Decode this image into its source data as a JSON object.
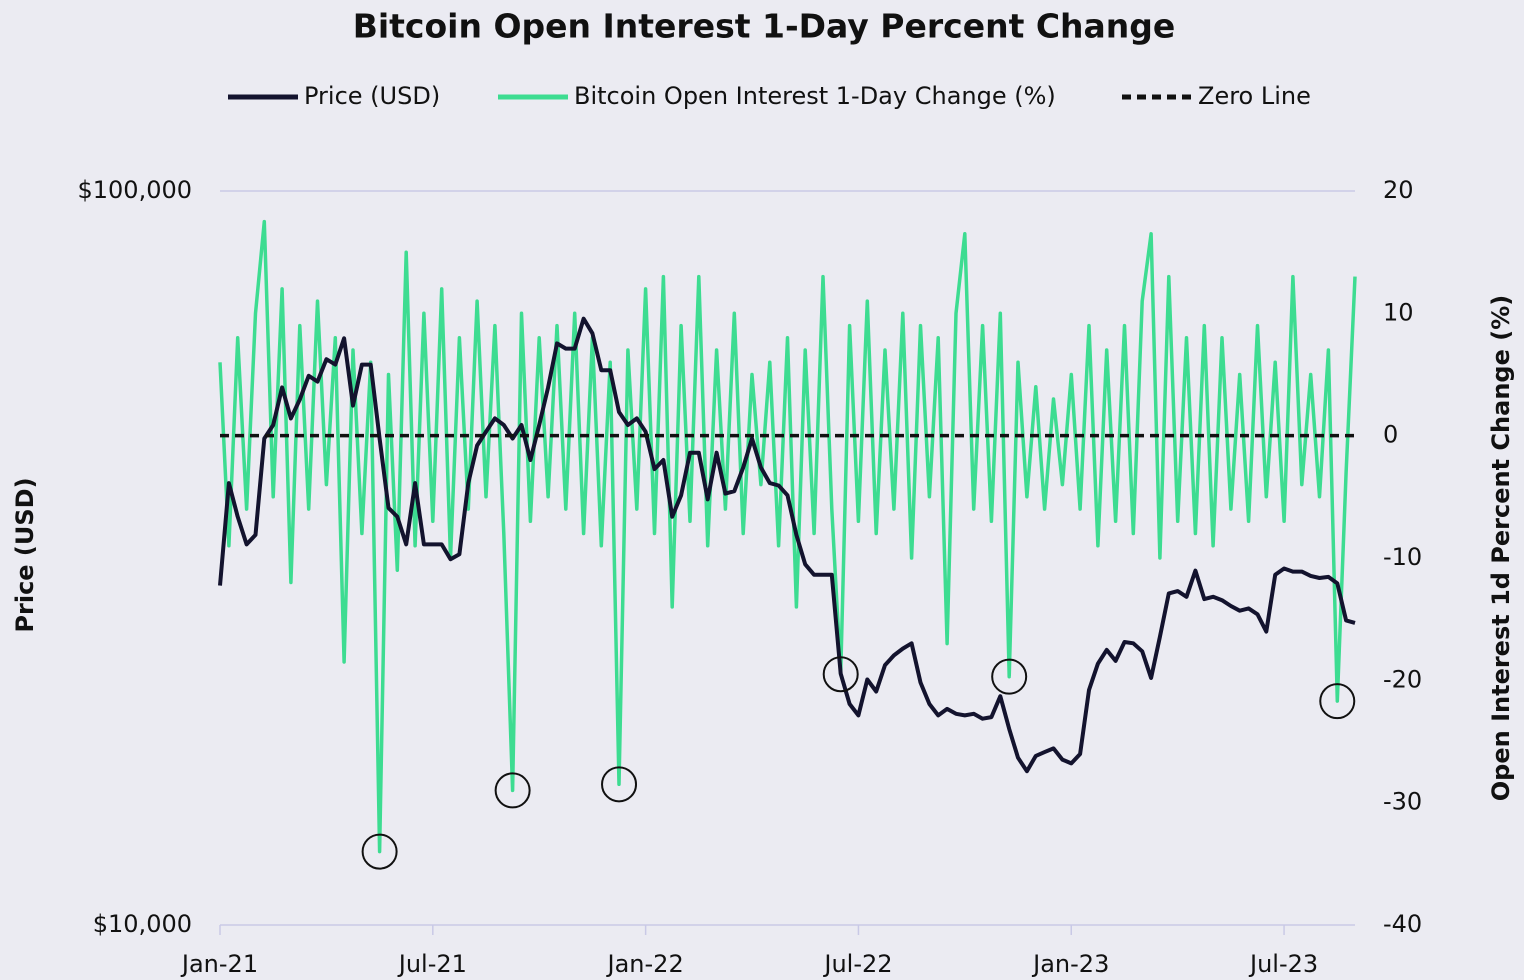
{
  "chart_data": {
    "type": "line",
    "title": "Bitcoin Open Interest 1-Day Percent Change",
    "y_label": "Price (USD)",
    "y2_label": "Open Interest 1d Percent Change (%)",
    "categories": [
      "Jan-21",
      null,
      null,
      null,
      null,
      null,
      null,
      null,
      null,
      null,
      null,
      null,
      null,
      null,
      null,
      null,
      null,
      null,
      null,
      null,
      null,
      null,
      null,
      null,
      "Jul-21",
      null,
      null,
      null,
      null,
      null,
      null,
      null,
      null,
      null,
      null,
      null,
      null,
      null,
      null,
      null,
      null,
      null,
      null,
      null,
      null,
      null,
      null,
      null,
      "Jan-22",
      null,
      null,
      null,
      null,
      null,
      null,
      null,
      null,
      null,
      null,
      null,
      null,
      null,
      null,
      null,
      null,
      null,
      null,
      null,
      null,
      null,
      null,
      null,
      "Jul-22",
      null,
      null,
      null,
      null,
      null,
      null,
      null,
      null,
      null,
      null,
      null,
      null,
      null,
      null,
      null,
      null,
      null,
      null,
      null,
      null,
      null,
      null,
      null,
      "Jan-23",
      null,
      null,
      null,
      null,
      null,
      null,
      null,
      null,
      null,
      null,
      null,
      null,
      null,
      null,
      null,
      null,
      null,
      null,
      null,
      null,
      null,
      null,
      null,
      "Jul-23",
      null,
      null,
      null,
      null,
      null,
      null,
      null,
      null
    ],
    "ylim": [
      10000,
      100000
    ],
    "y_log": true,
    "yticks": [
      {
        "value": 10000,
        "label": "$10,000"
      },
      {
        "value": 100000,
        "label": "$100,000"
      }
    ],
    "y2lim": [
      -40,
      20
    ],
    "y2ticks": [
      20,
      10,
      0,
      -10,
      -20,
      -30,
      -40
    ],
    "grid": true,
    "legend": "top",
    "series": [
      {
        "name": "Price (USD)",
        "color": "#13132e",
        "axis": "y",
        "values": [
          29000,
          40000,
          36000,
          33000,
          34000,
          46000,
          48000,
          54000,
          49000,
          52000,
          56000,
          55000,
          59000,
          58000,
          63000,
          51000,
          58000,
          58000,
          46000,
          37000,
          36000,
          33000,
          40000,
          33000,
          33000,
          33000,
          31500,
          32000,
          40000,
          45000,
          47000,
          49000,
          48000,
          46000,
          48000,
          43000,
          48000,
          54000,
          62000,
          61000,
          61000,
          67000,
          64000,
          57000,
          57000,
          50000,
          48000,
          49000,
          47000,
          41800,
          43000,
          36000,
          38500,
          44000,
          44000,
          38000,
          44000,
          38700,
          39000,
          42000,
          46000,
          42000,
          40000,
          39700,
          38500,
          34000,
          31000,
          30000,
          30000,
          30000,
          22000,
          20000,
          19300,
          21600,
          20800,
          22600,
          23300,
          23800,
          24200,
          21400,
          20000,
          19300,
          19700,
          19400,
          19300,
          19400,
          19100,
          19200,
          20500,
          18500,
          16900,
          16200,
          17000,
          17200,
          17400,
          16800,
          16600,
          17100,
          20900,
          22700,
          23700,
          22900,
          24300,
          24200,
          23600,
          21700,
          24700,
          28300,
          28500,
          28000,
          30400,
          27800,
          28000,
          27700,
          27200,
          26800,
          27000,
          26500,
          25100,
          30000,
          30600,
          30300,
          30300,
          29900,
          29700,
          29800,
          29200,
          26000,
          25800
        ]
      },
      {
        "name": "Bitcoin Open Interest 1-Day Change (%)",
        "color": "#3ddc91",
        "axis": "y2",
        "circled": [
          18,
          33,
          45,
          70,
          89,
          126
        ],
        "values": [
          6,
          -9,
          8,
          -6,
          10,
          17.5,
          -5,
          12,
          -12,
          9,
          -6,
          11,
          -4,
          8,
          -18.5,
          7,
          -8,
          6,
          -34,
          5,
          -11,
          15,
          -9,
          10,
          -7,
          12,
          -10,
          8,
          -6,
          11,
          -5,
          9,
          -8,
          -29,
          10,
          -7,
          8,
          -5,
          9,
          -6,
          10,
          -8,
          8,
          -9,
          6,
          -28.5,
          7,
          -6,
          12,
          -8,
          13,
          -14,
          9,
          -7,
          13,
          -9,
          7,
          -6,
          10,
          -8,
          5,
          -4,
          6,
          -9,
          8,
          -14,
          7,
          -8,
          13,
          -6,
          -19.5,
          9,
          -7,
          11,
          -8,
          7,
          -6,
          10,
          -10,
          9,
          -5,
          8,
          -17,
          10,
          16.5,
          -6,
          9,
          -7,
          10,
          -19.7,
          6,
          -5,
          4,
          -6,
          3,
          -4,
          5,
          -6,
          9,
          -9,
          7,
          -7,
          9,
          -8,
          11,
          16.5,
          -10,
          13,
          -7,
          8,
          -8,
          9,
          -9,
          8,
          -6,
          5,
          -7,
          9,
          -5,
          6,
          -7,
          13,
          -4,
          5,
          -5,
          7,
          -21.7,
          -3,
          13
        ]
      }
    ],
    "ref_lines": [
      {
        "name": "Zero Line",
        "value": 0,
        "axis": "y2",
        "color": "#111111",
        "dash": true
      }
    ]
  }
}
